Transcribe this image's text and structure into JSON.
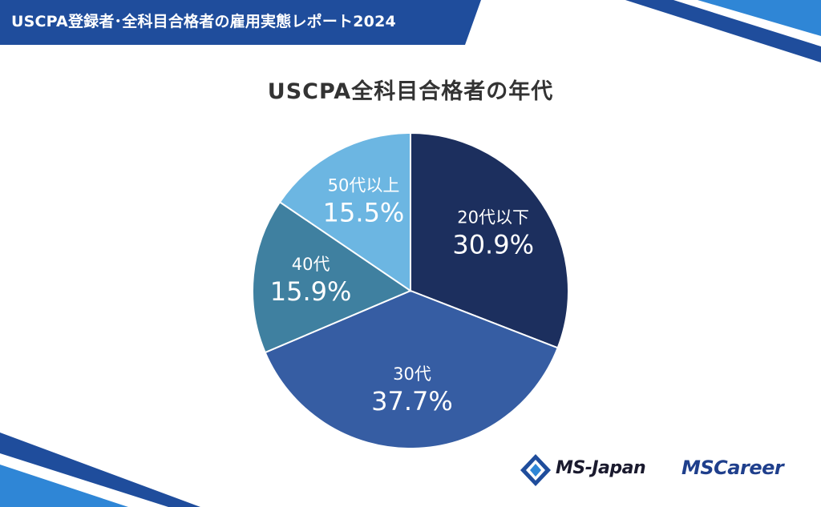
{
  "banner": {
    "title": "USCPA登録者･全科目合格者の雇用実態レポート2024"
  },
  "colors": {
    "banner": "#1f4d9c",
    "accent_light": "#2f86d6",
    "slice_20s": "#1c2f5e",
    "slice_30s": "#365da3",
    "slice_40s": "#3f80a0",
    "slice_50s": "#6cb6e2"
  },
  "chart_data": {
    "type": "pie",
    "title": "USCPA全科目合格者の年代",
    "slices": [
      {
        "label": "20代以下",
        "value": 30.9,
        "display": "30.9%",
        "color": "#1c2f5e"
      },
      {
        "label": "30代",
        "value": 37.7,
        "display": "37.7%",
        "color": "#365da3"
      },
      {
        "label": "40代",
        "value": 15.9,
        "display": "15.9%",
        "color": "#3f80a0"
      },
      {
        "label": "50代以上",
        "value": 15.5,
        "display": "15.5%",
        "color": "#6cb6e2"
      }
    ],
    "start": "12 o'clock",
    "direction": "clockwise"
  },
  "logos": {
    "ms_japan": "MS-Japan",
    "ms_career": "MSCareer"
  }
}
